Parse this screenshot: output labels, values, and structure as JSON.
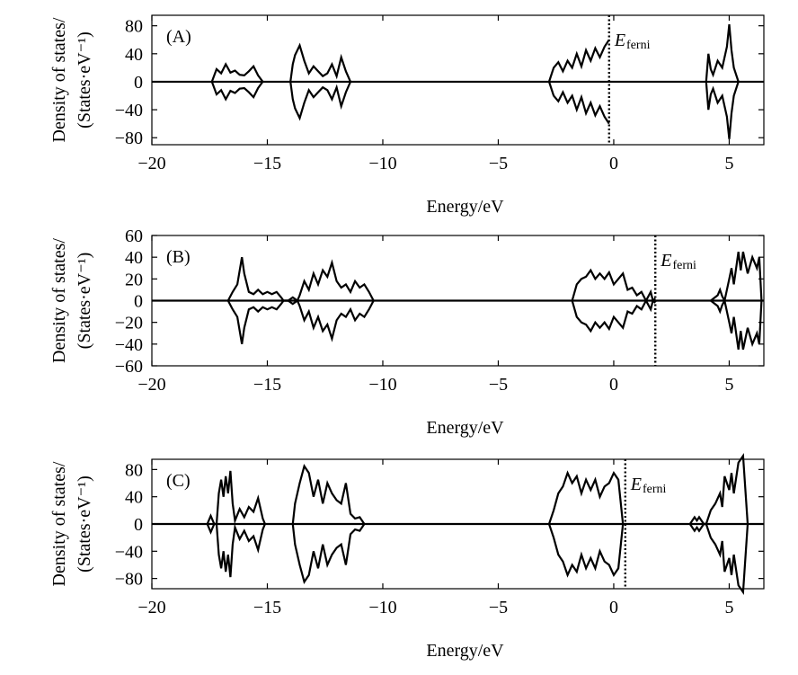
{
  "chart_data": [
    {
      "type": "line",
      "panel_label": "(A)",
      "xlabel": "Energy/eV",
      "ylabel_line1": "Density of states/",
      "ylabel_line2": "(States·eV⁻¹)",
      "xlim": [
        -20,
        6.5
      ],
      "ylim": [
        -90,
        95
      ],
      "xticks": [
        -20,
        -15,
        -10,
        -5,
        0,
        5
      ],
      "xtick_labels": [
        "−20",
        "−15",
        "−10",
        "−5",
        "0",
        "5"
      ],
      "yticks": [
        80,
        40,
        0,
        -40,
        -80
      ],
      "ytick_labels": [
        "80",
        "40",
        "0",
        "−40",
        "−80"
      ],
      "fermi_energy": -0.2,
      "fermi_label": "E",
      "fermi_sub": "ferni",
      "series": [
        {
          "name": "DOS",
          "x": [
            -17.4,
            -17.2,
            -17.0,
            -16.8,
            -16.6,
            -16.4,
            -16.2,
            -16.0,
            -15.8,
            -15.6,
            -15.4,
            -15.2,
            -14.0,
            -13.9,
            -13.8,
            -13.6,
            -13.4,
            -13.2,
            -13.0,
            -12.8,
            -12.6,
            -12.4,
            -12.2,
            -12.0,
            -11.8,
            -11.6,
            -11.4,
            -2.8,
            -2.6,
            -2.4,
            -2.2,
            -2.0,
            -1.8,
            -1.6,
            -1.4,
            -1.2,
            -1.0,
            -0.8,
            -0.6,
            -0.4,
            -0.2,
            4.0,
            4.1,
            4.2,
            4.3,
            4.5,
            4.7,
            4.9,
            5.0,
            5.1,
            5.2,
            5.4
          ],
          "y": [
            0,
            18,
            12,
            25,
            13,
            16,
            10,
            9,
            15,
            22,
            9,
            0,
            0,
            25,
            38,
            52,
            30,
            12,
            22,
            15,
            8,
            12,
            25,
            8,
            35,
            15,
            0,
            0,
            20,
            28,
            15,
            30,
            20,
            40,
            22,
            45,
            30,
            48,
            35,
            50,
            60,
            0,
            40,
            18,
            10,
            30,
            20,
            50,
            82,
            45,
            20,
            0
          ]
        }
      ]
    },
    {
      "type": "line",
      "panel_label": "(B)",
      "xlabel": "Energy/eV",
      "ylabel_line1": "Density of states/",
      "ylabel_line2": "(States·eV⁻¹)",
      "xlim": [
        -20,
        6.5
      ],
      "ylim": [
        -60,
        60
      ],
      "xticks": [
        -20,
        -15,
        -10,
        -5,
        0,
        5
      ],
      "xtick_labels": [
        "−20",
        "−15",
        "−10",
        "−5",
        "0",
        "5"
      ],
      "yticks": [
        60,
        40,
        20,
        0,
        -20,
        -40,
        -60
      ],
      "ytick_labels": [
        "60",
        "40",
        "20",
        "0",
        "−20",
        "−40",
        "−60"
      ],
      "fermi_energy": 1.8,
      "fermi_label": "E",
      "fermi_sub": "ferni",
      "series": [
        {
          "name": "DOS",
          "x": [
            -16.7,
            -16.5,
            -16.3,
            -16.1,
            -16.0,
            -15.8,
            -15.6,
            -15.4,
            -15.2,
            -15.0,
            -14.8,
            -14.6,
            -14.4,
            -14.3,
            -14.1,
            -13.9,
            -13.7,
            -13.6,
            -13.4,
            -13.2,
            -13.0,
            -12.8,
            -12.6,
            -12.4,
            -12.2,
            -12.0,
            -11.8,
            -11.6,
            -11.4,
            -11.2,
            -11.0,
            -10.8,
            -10.6,
            -10.4,
            -1.8,
            -1.6,
            -1.4,
            -1.2,
            -1.0,
            -0.8,
            -0.6,
            -0.4,
            -0.2,
            0.0,
            0.2,
            0.4,
            0.6,
            0.8,
            1.0,
            1.2,
            1.4,
            1.6,
            1.7,
            1.8,
            4.2,
            4.5,
            4.6,
            4.7,
            4.8,
            5.0,
            5.1,
            5.2,
            5.4,
            5.5,
            5.6,
            5.8,
            6.0,
            6.2,
            6.3,
            6.4
          ],
          "y": [
            0,
            8,
            15,
            40,
            25,
            8,
            6,
            10,
            6,
            8,
            6,
            8,
            3,
            0,
            0,
            3,
            0,
            5,
            18,
            10,
            25,
            15,
            28,
            22,
            35,
            18,
            12,
            15,
            8,
            18,
            12,
            15,
            8,
            0,
            0,
            15,
            20,
            22,
            28,
            20,
            25,
            20,
            26,
            15,
            20,
            25,
            10,
            12,
            5,
            8,
            0,
            8,
            0,
            2,
            0,
            5,
            10,
            4,
            0,
            20,
            30,
            15,
            45,
            28,
            45,
            25,
            40,
            30,
            40,
            0
          ]
        }
      ]
    },
    {
      "type": "line",
      "panel_label": "(C)",
      "xlabel": "Energy/eV",
      "ylabel_line1": "Density of states/",
      "ylabel_line2": "(States·eV⁻¹)",
      "xlim": [
        -20,
        6.5
      ],
      "ylim": [
        -95,
        95
      ],
      "xticks": [
        -20,
        -15,
        -10,
        -5,
        0,
        5
      ],
      "xtick_labels": [
        "−20",
        "−15",
        "−10",
        "−5",
        "0",
        "5"
      ],
      "yticks": [
        80,
        40,
        0,
        -40,
        -80
      ],
      "ytick_labels": [
        "80",
        "40",
        "0",
        "−40",
        "−80"
      ],
      "fermi_energy": 0.5,
      "fermi_label": "E",
      "fermi_sub": "ferni",
      "series": [
        {
          "name": "DOS",
          "x": [
            -17.6,
            -17.45,
            -17.3,
            -17.2,
            -17.1,
            -17.0,
            -16.9,
            -16.8,
            -16.7,
            -16.6,
            -16.5,
            -16.4,
            -16.2,
            -16.0,
            -15.8,
            -15.6,
            -15.4,
            -15.2,
            -15.1,
            -13.9,
            -13.8,
            -13.6,
            -13.4,
            -13.2,
            -13.0,
            -12.8,
            -12.6,
            -12.4,
            -12.2,
            -12.0,
            -11.8,
            -11.6,
            -11.4,
            -11.2,
            -11.0,
            -10.8,
            -2.8,
            -2.6,
            -2.4,
            -2.2,
            -2.0,
            -1.8,
            -1.6,
            -1.4,
            -1.2,
            -1.0,
            -0.8,
            -0.6,
            -0.4,
            -0.2,
            0.0,
            0.2,
            0.4,
            3.3,
            3.5,
            3.6,
            3.7,
            3.9,
            4.0,
            4.2,
            4.4,
            4.6,
            4.7,
            4.8,
            5.0,
            5.1,
            5.2,
            5.4,
            5.6,
            5.8
          ],
          "y": [
            0,
            12,
            0,
            0,
            45,
            65,
            40,
            70,
            45,
            78,
            30,
            5,
            22,
            10,
            25,
            18,
            38,
            8,
            0,
            0,
            30,
            60,
            85,
            75,
            40,
            65,
            30,
            60,
            45,
            35,
            30,
            60,
            15,
            8,
            10,
            0,
            0,
            20,
            45,
            55,
            75,
            60,
            70,
            45,
            65,
            50,
            65,
            40,
            55,
            60,
            75,
            65,
            0,
            0,
            10,
            5,
            10,
            0,
            0,
            20,
            30,
            45,
            25,
            70,
            50,
            75,
            45,
            90,
            100,
            0
          ]
        }
      ]
    }
  ]
}
